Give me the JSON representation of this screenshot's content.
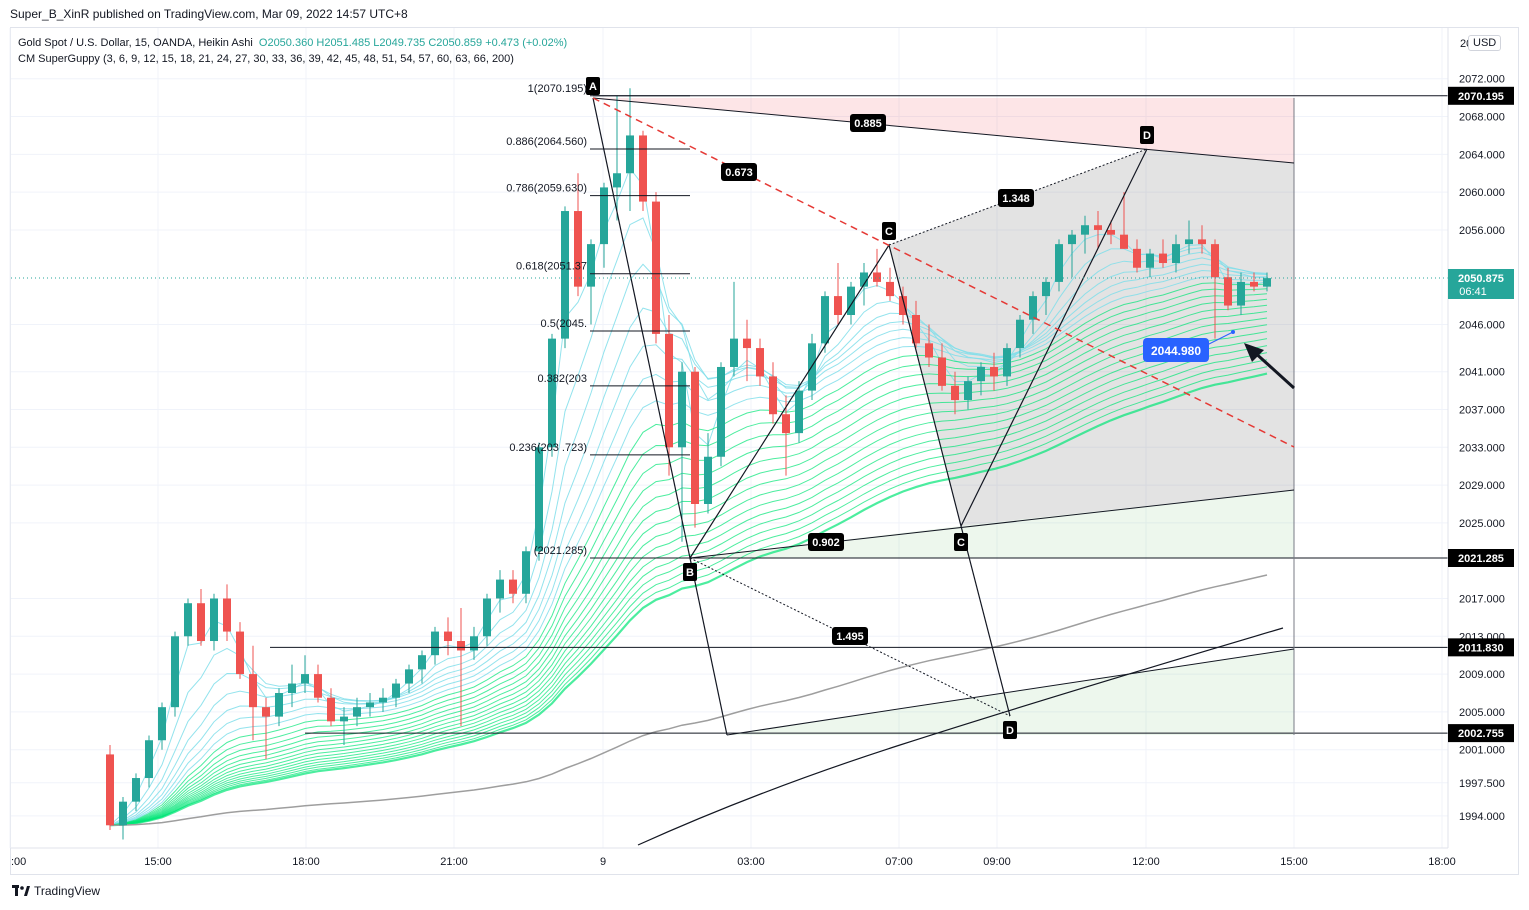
{
  "header": {
    "published_by": "Super_B_XinR published on TradingView.com, Mar 09, 2022 14:57 UTC+8"
  },
  "legend": {
    "symbol": "Gold Spot / U.S. Dollar, 15, OANDA, Heikin Ashi",
    "ohlc": "O2050.360  H2051.485  L2049.735  C2050.859  +0.473 (+0.02%)",
    "indicator": "CM SuperGuppy (3, 6, 9, 12, 15, 18, 21, 24, 27, 30, 33, 36, 39, 42, 45, 48, 51, 54, 57, 60, 63, 66, 200)"
  },
  "currency_button": "USD",
  "brand": "TradingView",
  "chart_data": {
    "type": "candlestick",
    "chart_style": "Heikin Ashi",
    "x_labels": [
      "15:00",
      "18:00",
      "21:00",
      "9",
      "03:00",
      "07:00",
      "09:00",
      "12:00",
      "15:00",
      "18:00"
    ],
    "y_ticks": [
      "2072.000",
      "2068.000",
      "2064.000",
      "2060.000",
      "2056.000",
      "2046.000",
      "2041.000",
      "2037.000",
      "2033.000",
      "2029.000",
      "2025.000",
      "2017.000",
      "2013.000",
      "2009.000",
      "2005.000",
      "2001.000",
      "1997.500",
      "1994.000"
    ],
    "y_top_partial": "20",
    "y_axis_partial_left": ":00",
    "colors": {
      "up": "#26a69a",
      "down": "#ef5350",
      "bullish_ribbon": "#00e676",
      "fast_ribbon": "#80deea",
      "label_bg": "#000000",
      "price_label": "#26a69a",
      "marker_blue": "#2962ff"
    },
    "current_price": {
      "value": "2050.875",
      "countdown": "06:41"
    },
    "price_labels": [
      "2070.195",
      "2021.285",
      "2011.830",
      "2002.755"
    ],
    "fib_levels": [
      {
        "label": "1(2070.195)",
        "value": 2070.195
      },
      {
        "label": "0.886(2064.560)",
        "value": 2064.56
      },
      {
        "label": "0.786(2059.630)",
        "value": 2059.63
      },
      {
        "label": "0.618(2051.37",
        "value": 2051.37
      },
      {
        "label": "0.5(2045.",
        "value": 2045.3
      },
      {
        "label": "0.382(203",
        "value": 2039.5
      },
      {
        "label": "0.236(203 .723)",
        "value": 2032.2
      },
      {
        "label": "(2021.285)",
        "value": 2021.285
      }
    ],
    "pattern_points": [
      "A",
      "B",
      "C",
      "D",
      "C",
      "D"
    ],
    "ratios": [
      "0.673",
      "0.885",
      "1.348",
      "0.902",
      "1.495"
    ],
    "annotation_price": "2044.980",
    "candles": [
      [
        2000.5,
        2001.5,
        1992.5,
        1993.0
      ],
      [
        1993.0,
        1996.0,
        1991.5,
        1995.5
      ],
      [
        1995.5,
        1998.5,
        1994.5,
        1998.0
      ],
      [
        1998.0,
        2002.5,
        1997.0,
        2002.0
      ],
      [
        2002.0,
        2006.0,
        2001.0,
        2005.5
      ],
      [
        2005.5,
        2013.5,
        2004.5,
        2013.0
      ],
      [
        2013.0,
        2017.0,
        2012.0,
        2016.5
      ],
      [
        2016.5,
        2018.0,
        2012.0,
        2012.5
      ],
      [
        2012.5,
        2017.5,
        2011.5,
        2017.0
      ],
      [
        2017.0,
        2018.5,
        2012.5,
        2013.5
      ],
      [
        2013.5,
        2014.5,
        2008.5,
        2009.0
      ],
      [
        2009.0,
        2012.0,
        2002.0,
        2005.5
      ],
      [
        2005.5,
        2006.5,
        2000.0,
        2004.5
      ],
      [
        2004.5,
        2007.5,
        2003.5,
        2007.0
      ],
      [
        2007.0,
        2010.0,
        2005.5,
        2008.0
      ],
      [
        2008.0,
        2011.0,
        2007.0,
        2009.0
      ],
      [
        2009.0,
        2010.0,
        2006.0,
        2006.5
      ],
      [
        2006.5,
        2007.5,
        2003.5,
        2004.0
      ],
      [
        2004.0,
        2005.5,
        2001.5,
        2004.5
      ],
      [
        2004.5,
        2006.5,
        2003.5,
        2005.5
      ],
      [
        2005.5,
        2007.0,
        2004.5,
        2006.0
      ],
      [
        2006.0,
        2007.5,
        2005.0,
        2006.5
      ],
      [
        2006.5,
        2008.5,
        2005.5,
        2008.0
      ],
      [
        2008.0,
        2010.0,
        2007.0,
        2009.5
      ],
      [
        2009.5,
        2011.5,
        2008.0,
        2011.0
      ],
      [
        2011.0,
        2014.0,
        2010.0,
        2013.5
      ],
      [
        2013.5,
        2015.0,
        2011.0,
        2012.5
      ],
      [
        2012.5,
        2016.0,
        2003.5,
        2011.5
      ],
      [
        2011.5,
        2014.0,
        2010.5,
        2013.0
      ],
      [
        2013.0,
        2017.5,
        2012.0,
        2017.0
      ],
      [
        2017.0,
        2020.0,
        2015.5,
        2019.0
      ],
      [
        2019.0,
        2020.0,
        2016.5,
        2017.5
      ],
      [
        2017.5,
        2022.5,
        2016.5,
        2022.0
      ],
      [
        2022.0,
        2033.5,
        2021.0,
        2033.0
      ],
      [
        2033.0,
        2045.0,
        2032.0,
        2044.5
      ],
      [
        2044.5,
        2058.5,
        2043.5,
        2058.0
      ],
      [
        2058.0,
        2062.0,
        2049.0,
        2050.0
      ],
      [
        2050.0,
        2055.0,
        2046.0,
        2054.5
      ],
      [
        2054.5,
        2061.0,
        2052.0,
        2060.5
      ],
      [
        2060.5,
        2070.2,
        2057.0,
        2062.0
      ],
      [
        2062.0,
        2071.0,
        2058.0,
        2066.0
      ],
      [
        2066.0,
        2066.5,
        2058.0,
        2059.0
      ],
      [
        2059.0,
        2060.0,
        2044.0,
        2045.0
      ],
      [
        2045.0,
        2047.0,
        2030.0,
        2033.0
      ],
      [
        2033.0,
        2042.0,
        2023.0,
        2041.0
      ],
      [
        2041.0,
        2041.5,
        2024.5,
        2027.0
      ],
      [
        2027.0,
        2034.5,
        2026.0,
        2032.0
      ],
      [
        2032.0,
        2042.0,
        2031.0,
        2041.5
      ],
      [
        2041.5,
        2050.5,
        2040.5,
        2044.5
      ],
      [
        2044.5,
        2046.5,
        2040.0,
        2043.5
      ],
      [
        2043.5,
        2044.5,
        2039.5,
        2040.5
      ],
      [
        2040.5,
        2042.0,
        2035.5,
        2036.5
      ],
      [
        2036.5,
        2038.5,
        2030.0,
        2034.5
      ],
      [
        2034.5,
        2040.0,
        2033.5,
        2039.0
      ],
      [
        2039.0,
        2045.0,
        2038.0,
        2044.0
      ],
      [
        2044.0,
        2049.5,
        2043.0,
        2049.0
      ],
      [
        2049.0,
        2052.5,
        2046.0,
        2047.0
      ],
      [
        2047.0,
        2050.5,
        2046.0,
        2050.0
      ],
      [
        2050.0,
        2052.5,
        2048.0,
        2051.5
      ],
      [
        2051.5,
        2054.0,
        2050.0,
        2050.5
      ],
      [
        2050.5,
        2052.0,
        2048.5,
        2049.0
      ],
      [
        2049.0,
        2050.0,
        2046.0,
        2047.0
      ],
      [
        2047.0,
        2048.5,
        2043.5,
        2044.0
      ],
      [
        2044.0,
        2046.0,
        2041.5,
        2042.5
      ],
      [
        2042.5,
        2044.0,
        2039.0,
        2039.5
      ],
      [
        2039.5,
        2041.0,
        2036.5,
        2038.0
      ],
      [
        2038.0,
        2040.5,
        2037.0,
        2040.0
      ],
      [
        2040.0,
        2042.0,
        2038.5,
        2041.5
      ],
      [
        2041.5,
        2043.0,
        2039.0,
        2040.5
      ],
      [
        2040.5,
        2044.0,
        2039.5,
        2043.5
      ],
      [
        2043.5,
        2047.0,
        2042.5,
        2046.5
      ],
      [
        2046.5,
        2049.5,
        2045.0,
        2049.0
      ],
      [
        2049.0,
        2051.0,
        2047.0,
        2050.5
      ],
      [
        2050.5,
        2055.0,
        2049.5,
        2054.5
      ],
      [
        2054.5,
        2056.0,
        2051.0,
        2055.5
      ],
      [
        2055.5,
        2057.5,
        2053.5,
        2056.5
      ],
      [
        2056.5,
        2058.0,
        2054.0,
        2056.0
      ],
      [
        2056.0,
        2057.0,
        2054.5,
        2055.5
      ],
      [
        2055.5,
        2060.0,
        2054.0,
        2054.0
      ],
      [
        2054.0,
        2055.0,
        2051.5,
        2052.0
      ],
      [
        2052.0,
        2054.0,
        2051.0,
        2053.5
      ],
      [
        2053.5,
        2055.0,
        2052.0,
        2052.5
      ],
      [
        2052.5,
        2055.5,
        2051.5,
        2054.5
      ],
      [
        2054.5,
        2057.0,
        2053.5,
        2055.0
      ],
      [
        2055.0,
        2056.5,
        2053.5,
        2054.5
      ],
      [
        2054.5,
        2055.0,
        2044.5,
        2051.0
      ],
      [
        2051.0,
        2052.0,
        2047.5,
        2048.0
      ],
      [
        2048.0,
        2051.5,
        2047.0,
        2050.5
      ],
      [
        2050.5,
        2051.5,
        2049.5,
        2050.0
      ],
      [
        2050.0,
        2051.5,
        2049.5,
        2050.9
      ]
    ]
  }
}
